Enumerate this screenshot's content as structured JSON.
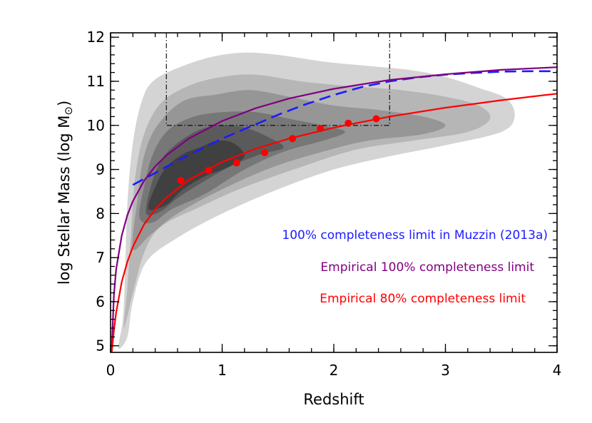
{
  "chart_data": {
    "type": "scatter",
    "xlabel": "Redshift",
    "ylabel_main": "log Stellar Mass (log M",
    "ylabel_sun": "⊙",
    "ylabel_close": ")",
    "xlim": [
      0,
      4
    ],
    "ylim": [
      4.85,
      12.1
    ],
    "x_ticks": [
      0,
      1,
      2,
      3,
      4
    ],
    "y_ticks": [
      5,
      6,
      7,
      8,
      9,
      10,
      11,
      12
    ],
    "x_minor_step": 0.2,
    "y_minor_step": 0.2,
    "grid": false,
    "legend_position": "bottom-right",
    "density_contours": {
      "colors": [
        "#d4d4d4",
        "#b6b6b6",
        "#969696",
        "#777777",
        "#5a5a5a",
        "#404040"
      ],
      "levels": [
        [
          [
            0.07,
            4.95
          ],
          [
            0.11,
            5.6
          ],
          [
            0.13,
            6.6
          ],
          [
            0.15,
            8.2
          ],
          [
            0.2,
            9.6
          ],
          [
            0.28,
            10.55
          ],
          [
            0.38,
            11.0
          ],
          [
            0.6,
            11.3
          ],
          [
            0.9,
            11.55
          ],
          [
            1.2,
            11.65
          ],
          [
            1.5,
            11.6
          ],
          [
            1.9,
            11.45
          ],
          [
            2.3,
            11.35
          ],
          [
            2.7,
            11.25
          ],
          [
            3.0,
            11.1
          ],
          [
            3.3,
            10.85
          ],
          [
            3.55,
            10.6
          ],
          [
            3.62,
            10.2
          ],
          [
            3.5,
            9.85
          ],
          [
            3.0,
            9.55
          ],
          [
            2.5,
            9.3
          ],
          [
            2.0,
            9.0
          ],
          [
            1.5,
            8.55
          ],
          [
            1.0,
            8.0
          ],
          [
            0.6,
            7.45
          ],
          [
            0.32,
            6.9
          ],
          [
            0.2,
            6.0
          ],
          [
            0.15,
            5.2
          ]
        ],
        [
          [
            0.12,
            5.4
          ],
          [
            0.15,
            6.3
          ],
          [
            0.18,
            7.4
          ],
          [
            0.22,
            8.8
          ],
          [
            0.3,
            9.8
          ],
          [
            0.45,
            10.5
          ],
          [
            0.7,
            10.9
          ],
          [
            1.0,
            11.1
          ],
          [
            1.3,
            11.15
          ],
          [
            1.7,
            11.0
          ],
          [
            2.1,
            10.9
          ],
          [
            2.6,
            10.8
          ],
          [
            3.0,
            10.65
          ],
          [
            3.3,
            10.45
          ],
          [
            3.4,
            10.15
          ],
          [
            3.2,
            9.85
          ],
          [
            2.7,
            9.65
          ],
          [
            2.2,
            9.45
          ],
          [
            1.7,
            9.05
          ],
          [
            1.2,
            8.6
          ],
          [
            0.8,
            8.15
          ],
          [
            0.45,
            7.7
          ],
          [
            0.3,
            7.1
          ],
          [
            0.2,
            6.2
          ]
        ],
        [
          [
            0.2,
            7.2
          ],
          [
            0.24,
            8.3
          ],
          [
            0.3,
            9.3
          ],
          [
            0.42,
            10.0
          ],
          [
            0.65,
            10.55
          ],
          [
            0.95,
            10.7
          ],
          [
            1.25,
            10.8
          ],
          [
            1.6,
            10.65
          ],
          [
            2.0,
            10.45
          ],
          [
            2.4,
            10.35
          ],
          [
            2.8,
            10.2
          ],
          [
            3.0,
            10.0
          ],
          [
            2.8,
            9.8
          ],
          [
            2.3,
            9.65
          ],
          [
            1.9,
            9.4
          ],
          [
            1.45,
            9.05
          ],
          [
            1.0,
            8.55
          ],
          [
            0.6,
            8.0
          ],
          [
            0.35,
            7.5
          ]
        ],
        [
          [
            0.26,
            7.9
          ],
          [
            0.3,
            8.6
          ],
          [
            0.38,
            9.35
          ],
          [
            0.52,
            9.9
          ],
          [
            0.75,
            10.2
          ],
          [
            1.0,
            10.3
          ],
          [
            1.3,
            10.3
          ],
          [
            1.6,
            10.15
          ],
          [
            1.9,
            10.0
          ],
          [
            2.1,
            9.85
          ],
          [
            1.9,
            9.65
          ],
          [
            1.55,
            9.4
          ],
          [
            1.2,
            9.0
          ],
          [
            0.85,
            8.45
          ],
          [
            0.55,
            8.1
          ],
          [
            0.38,
            7.8
          ]
        ],
        [
          [
            0.32,
            8.0
          ],
          [
            0.36,
            8.6
          ],
          [
            0.45,
            9.2
          ],
          [
            0.6,
            9.6
          ],
          [
            0.8,
            9.9
          ],
          [
            1.0,
            10.0
          ],
          [
            1.2,
            9.95
          ],
          [
            1.4,
            9.75
          ],
          [
            1.55,
            9.5
          ],
          [
            1.35,
            9.35
          ],
          [
            1.1,
            9.1
          ],
          [
            0.85,
            8.75
          ],
          [
            0.6,
            8.35
          ],
          [
            0.45,
            8.05
          ]
        ],
        [
          [
            0.34,
            8.1
          ],
          [
            0.4,
            8.6
          ],
          [
            0.5,
            9.05
          ],
          [
            0.65,
            9.35
          ],
          [
            0.8,
            9.5
          ],
          [
            0.95,
            9.65
          ],
          [
            1.1,
            9.6
          ],
          [
            1.2,
            9.3
          ],
          [
            1.05,
            9.05
          ],
          [
            0.85,
            8.85
          ],
          [
            0.65,
            8.55
          ],
          [
            0.5,
            8.2
          ]
        ]
      ]
    },
    "box": {
      "x": [
        0.5,
        2.5
      ],
      "y": [
        10.0,
        12.1
      ],
      "style": "dash-dot",
      "color": "#000000"
    },
    "series": [
      {
        "name": "100% completeness limit in Muzzin (2013a)",
        "color": "#1c1cff",
        "style": "dashed",
        "x": [
          0.2,
          0.4,
          0.6,
          0.8,
          1.0,
          1.25,
          1.5,
          1.75,
          2.0,
          2.25,
          2.5,
          2.75,
          3.0,
          3.25,
          3.5,
          3.75,
          4.0
        ],
        "y": [
          8.65,
          8.92,
          9.2,
          9.45,
          9.7,
          9.97,
          10.24,
          10.48,
          10.69,
          10.87,
          11.0,
          11.09,
          11.15,
          11.19,
          11.22,
          11.23,
          11.23
        ]
      },
      {
        "name": "Empirical 100% completeness limit",
        "color": "#800080",
        "style": "solid",
        "x": [
          0.01,
          0.03,
          0.05,
          0.1,
          0.15,
          0.2,
          0.3,
          0.4,
          0.5,
          0.7,
          1.0,
          1.3,
          1.6,
          2.0,
          2.5,
          3.0,
          3.5,
          4.0
        ],
        "y": [
          4.9,
          6.15,
          6.73,
          7.5,
          7.96,
          8.28,
          8.74,
          9.07,
          9.32,
          9.7,
          10.1,
          10.39,
          10.61,
          10.83,
          11.03,
          11.16,
          11.26,
          11.32
        ]
      },
      {
        "name": "Empirical 80% completeness limit",
        "color": "#ff0000",
        "style": "solid",
        "x": [
          0.01,
          0.03,
          0.05,
          0.1,
          0.15,
          0.2,
          0.3,
          0.4,
          0.5,
          0.7,
          1.0,
          1.3,
          1.6,
          2.0,
          2.5,
          3.0,
          3.5,
          4.0
        ],
        "y": [
          4.85,
          5.35,
          5.75,
          6.45,
          6.9,
          7.25,
          7.75,
          8.1,
          8.36,
          8.76,
          9.17,
          9.47,
          9.7,
          9.95,
          10.2,
          10.4,
          10.57,
          10.72
        ]
      }
    ],
    "points": {
      "color": "#ff0000",
      "x": [
        0.63,
        0.88,
        1.13,
        1.38,
        1.63,
        1.88,
        2.13,
        2.38
      ],
      "y": [
        8.75,
        8.98,
        9.15,
        9.38,
        9.7,
        9.93,
        10.05,
        10.15
      ]
    }
  }
}
